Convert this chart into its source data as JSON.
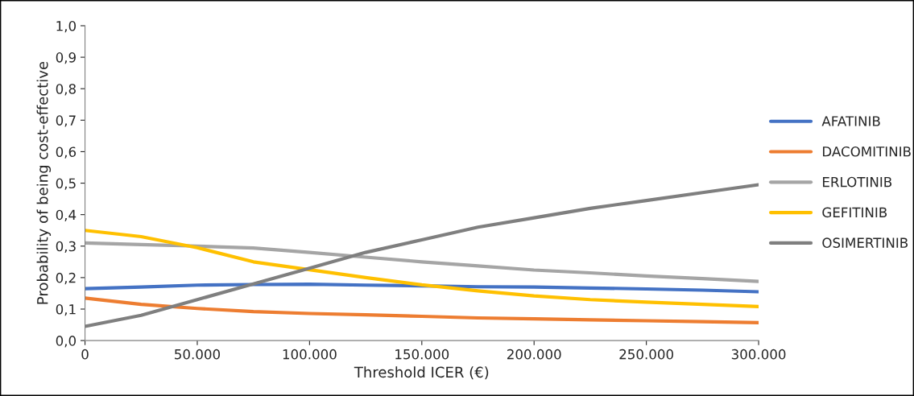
{
  "chart_data": {
    "type": "line",
    "xlabel": "Threshold ICER (€)",
    "ylabel": "Probability of being cost-effective",
    "xlim": [
      0,
      300000
    ],
    "ylim": [
      0,
      1
    ],
    "xticks": [
      {
        "value": 0,
        "label": "0"
      },
      {
        "value": 50000,
        "label": "50.000"
      },
      {
        "value": 100000,
        "label": "100.000"
      },
      {
        "value": 150000,
        "label": "150.000"
      },
      {
        "value": 200000,
        "label": "200.000"
      },
      {
        "value": 250000,
        "label": "250.000"
      },
      {
        "value": 300000,
        "label": "300.000"
      }
    ],
    "yticks": [
      {
        "value": 0,
        "label": "0,0"
      },
      {
        "value": 0.1,
        "label": "0,1"
      },
      {
        "value": 0.2,
        "label": "0,2"
      },
      {
        "value": 0.3,
        "label": "0,3"
      },
      {
        "value": 0.4,
        "label": "0,4"
      },
      {
        "value": 0.5,
        "label": "0,5"
      },
      {
        "value": 0.6,
        "label": "0,6"
      },
      {
        "value": 0.7,
        "label": "0,7"
      },
      {
        "value": 0.8,
        "label": "0,8"
      },
      {
        "value": 0.9,
        "label": "0,9"
      },
      {
        "value": 1,
        "label": "1,0"
      }
    ],
    "x": [
      0,
      25000,
      50000,
      75000,
      100000,
      125000,
      150000,
      175000,
      200000,
      225000,
      250000,
      275000,
      300000
    ],
    "grid": false,
    "legend": "right",
    "marker": "none",
    "line_style": "solid",
    "series": [
      {
        "name": "AFATINIB",
        "color": "#4472c4",
        "values": [
          0.165,
          0.17,
          0.176,
          0.178,
          0.179,
          0.176,
          0.174,
          0.171,
          0.17,
          0.167,
          0.164,
          0.16,
          0.155
        ]
      },
      {
        "name": "DACOMITINIB",
        "color": "#ed7d31",
        "values": [
          0.135,
          0.115,
          0.102,
          0.092,
          0.086,
          0.082,
          0.077,
          0.072,
          0.069,
          0.066,
          0.063,
          0.06,
          0.057
        ]
      },
      {
        "name": "ERLOTINIB",
        "color": "#a5a5a5",
        "values": [
          0.31,
          0.305,
          0.3,
          0.294,
          0.28,
          0.265,
          0.25,
          0.237,
          0.224,
          0.215,
          0.205,
          0.197,
          0.188
        ]
      },
      {
        "name": "GEFITINIB",
        "color": "#ffc000",
        "values": [
          0.35,
          0.33,
          0.295,
          0.25,
          0.225,
          0.2,
          0.177,
          0.158,
          0.142,
          0.13,
          0.122,
          0.115,
          0.108
        ]
      },
      {
        "name": "OSIMERTINIB",
        "color": "#7f7f7f",
        "values": [
          0.045,
          0.08,
          0.13,
          0.18,
          0.23,
          0.28,
          0.32,
          0.36,
          0.39,
          0.42,
          0.445,
          0.47,
          0.495
        ]
      }
    ]
  }
}
